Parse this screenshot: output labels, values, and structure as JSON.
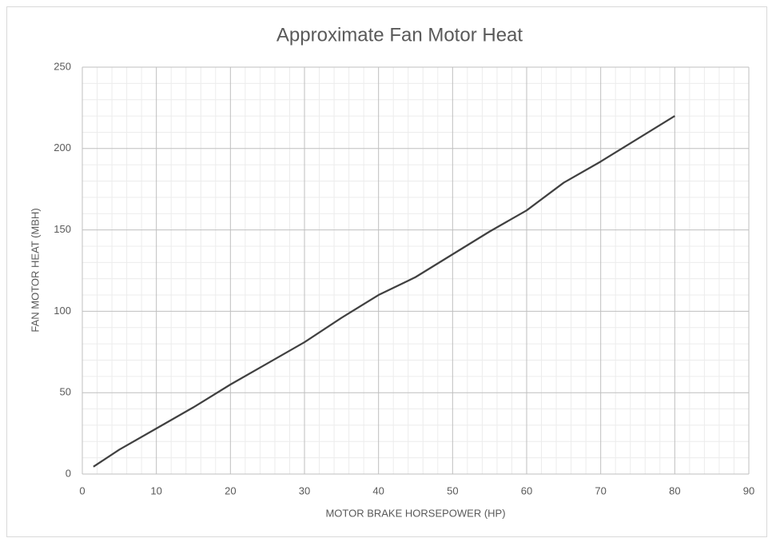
{
  "chart_data": {
    "type": "line",
    "title": "Approximate Fan Motor Heat",
    "x_label": "MOTOR BRAKE HORSEPOWER (HP)",
    "y_label": "FAN MOTOR HEAT (MBH)",
    "x": [
      1.5,
      5,
      10,
      15,
      20,
      25,
      30,
      35,
      40,
      45,
      50,
      55,
      60,
      65,
      70,
      75,
      80
    ],
    "series": [
      {
        "name": "Fan Motor Heat",
        "color": "#404040",
        "values": [
          4.5,
          15,
          28,
          41,
          55,
          68,
          81,
          96,
          110,
          121,
          135,
          149,
          162,
          179,
          192,
          206,
          220
        ]
      }
    ],
    "xlim": [
      0,
      90
    ],
    "xticks": [
      0,
      10,
      20,
      30,
      40,
      50,
      60,
      70,
      80,
      90
    ],
    "ylim": [
      0,
      250
    ],
    "yticks": [
      0,
      50,
      100,
      150,
      200,
      250
    ],
    "grid": true
  }
}
